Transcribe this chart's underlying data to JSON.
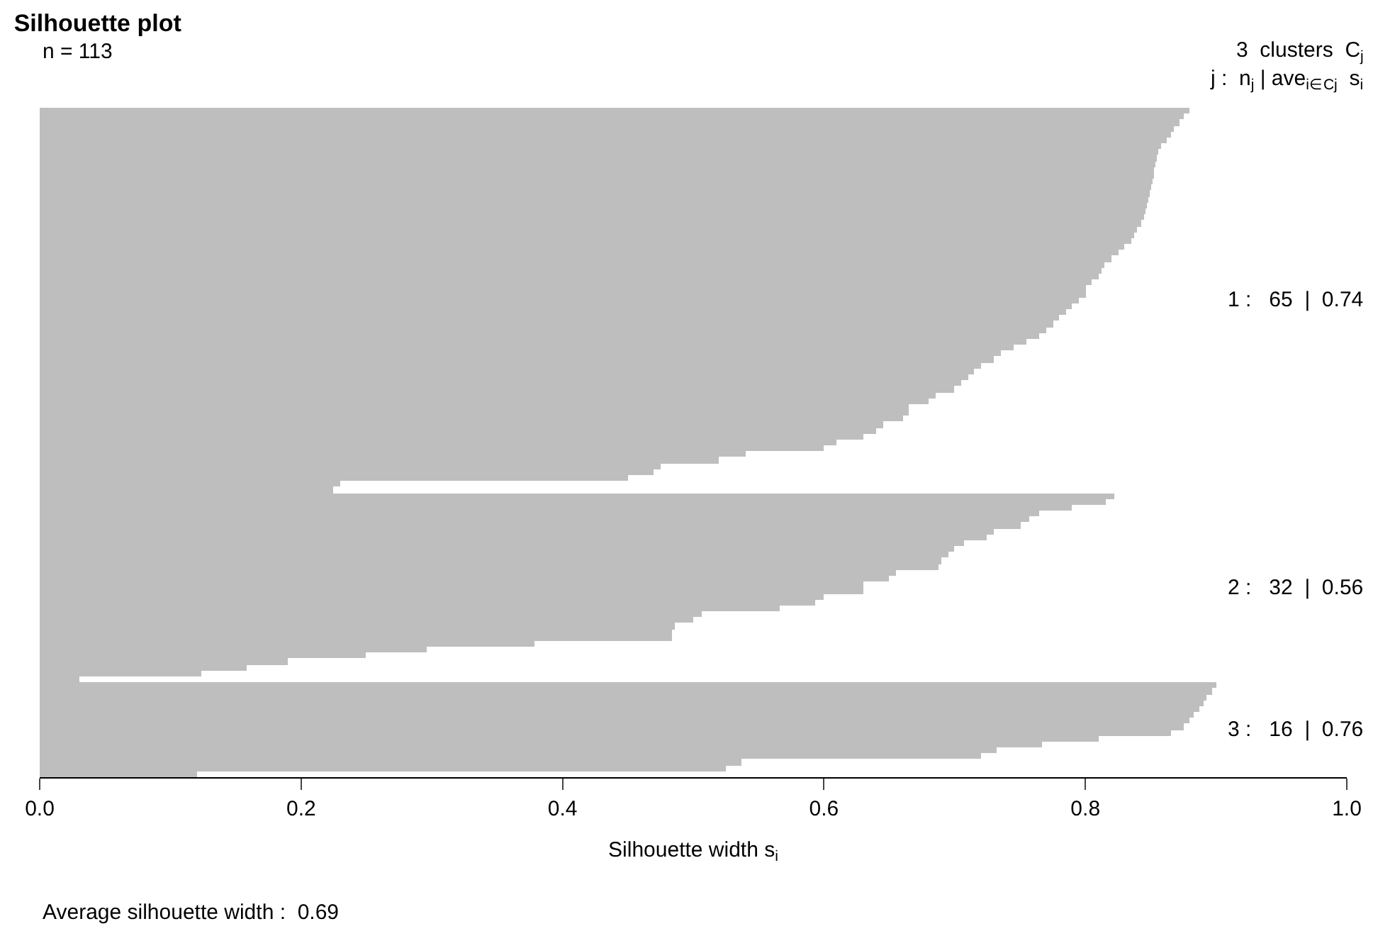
{
  "chart_data": {
    "type": "bar",
    "orientation": "horizontal",
    "stacked": true,
    "title": "Silhouette plot",
    "xlabel": "Silhouette width s$_{i}$",
    "categories": [
      null,
      null,
      null,
      null,
      null,
      null,
      null,
      null,
      null,
      null,
      null,
      null,
      null,
      null,
      null,
      null,
      null,
      null,
      null,
      null,
      null,
      null,
      null,
      null,
      null,
      null,
      null,
      null,
      null,
      null,
      null,
      null,
      null,
      null,
      null,
      null,
      null,
      null,
      null,
      null,
      null,
      null,
      null,
      null,
      null,
      null,
      null,
      null,
      null,
      null,
      null,
      null,
      null,
      null,
      null,
      null,
      null,
      null,
      null,
      null,
      null,
      null,
      null,
      null,
      null,
      null,
      null,
      null,
      null,
      null,
      null,
      null,
      null,
      null,
      null,
      null,
      null,
      null,
      null,
      null,
      null,
      null,
      null,
      null,
      null,
      null,
      null,
      null,
      null,
      null,
      null,
      null,
      null,
      null,
      null,
      null,
      null,
      null,
      null,
      null,
      null,
      null,
      null,
      null,
      null,
      null,
      null,
      null,
      null,
      null,
      null,
      null,
      null
    ],
    "series": [
      {
        "color": "#bebebe",
        "values": [
          0.88,
          0.875,
          0.872,
          0.868,
          0.865,
          0.862,
          0.858,
          0.856,
          0.855,
          0.854,
          0.853,
          0.852,
          0.851,
          0.85,
          0.849,
          0.848,
          0.847,
          0.846,
          0.845,
          0.843,
          0.84,
          0.837,
          0.835,
          0.83,
          0.825,
          0.82,
          0.815,
          0.812,
          0.81,
          0.805,
          0.8,
          0.8,
          0.795,
          0.79,
          0.785,
          0.78,
          0.775,
          0.77,
          0.765,
          0.755,
          0.745,
          0.735,
          0.73,
          0.72,
          0.715,
          0.71,
          0.705,
          0.7,
          0.685,
          0.68,
          0.665,
          0.665,
          0.66,
          0.645,
          0.64,
          0.63,
          0.61,
          0.6,
          0.54,
          0.52,
          0.475,
          0.47,
          0.45,
          0.23,
          0.225,
          null,
          null,
          null,
          null,
          null,
          null,
          null,
          null,
          null,
          null,
          null,
          null,
          null,
          null,
          null,
          null,
          null,
          null,
          null,
          null,
          null,
          null,
          null,
          null,
          null,
          null,
          null,
          null,
          null,
          null,
          null,
          null,
          null,
          null,
          null,
          null,
          null,
          null,
          null,
          null,
          null,
          null,
          null,
          null,
          null,
          null,
          null,
          null
        ]
      },
      {
        "color": "#bebebe",
        "values": [
          null,
          null,
          null,
          null,
          null,
          null,
          null,
          null,
          null,
          null,
          null,
          null,
          null,
          null,
          null,
          null,
          null,
          null,
          null,
          null,
          null,
          null,
          null,
          null,
          null,
          null,
          null,
          null,
          null,
          null,
          null,
          null,
          null,
          null,
          null,
          null,
          null,
          null,
          null,
          null,
          null,
          null,
          null,
          null,
          null,
          null,
          null,
          null,
          null,
          null,
          null,
          null,
          null,
          null,
          null,
          null,
          null,
          null,
          null,
          null,
          null,
          null,
          null,
          null,
          null,
          0.822,
          0.816,
          0.79,
          0.765,
          0.757,
          0.75,
          0.73,
          0.725,
          0.707,
          0.7,
          0.695,
          0.69,
          0.688,
          0.655,
          0.65,
          0.63,
          0.63,
          0.6,
          0.593,
          0.566,
          0.507,
          0.5,
          0.486,
          0.484,
          0.484,
          0.378,
          0.296,
          0.249,
          0.19,
          0.158,
          0.124,
          0.03,
          null,
          null,
          null,
          null,
          null,
          null,
          null,
          null,
          null,
          null,
          null,
          null,
          null,
          null,
          null,
          null
        ]
      },
      {
        "color": "#bebebe",
        "values": [
          null,
          null,
          null,
          null,
          null,
          null,
          null,
          null,
          null,
          null,
          null,
          null,
          null,
          null,
          null,
          null,
          null,
          null,
          null,
          null,
          null,
          null,
          null,
          null,
          null,
          null,
          null,
          null,
          null,
          null,
          null,
          null,
          null,
          null,
          null,
          null,
          null,
          null,
          null,
          null,
          null,
          null,
          null,
          null,
          null,
          null,
          null,
          null,
          null,
          null,
          null,
          null,
          null,
          null,
          null,
          null,
          null,
          null,
          null,
          null,
          null,
          null,
          null,
          null,
          null,
          null,
          null,
          null,
          null,
          null,
          null,
          null,
          null,
          null,
          null,
          null,
          null,
          null,
          null,
          null,
          null,
          null,
          null,
          null,
          null,
          null,
          null,
          null,
          null,
          null,
          null,
          null,
          null,
          null,
          null,
          null,
          null,
          0.9,
          0.897,
          0.893,
          0.89,
          0.887,
          0.883,
          0.88,
          0.875,
          0.866,
          0.81,
          0.767,
          0.732,
          0.72,
          0.537,
          0.525,
          0.12
        ]
      }
    ],
    "xlim": [
      0,
      1
    ],
    "xticks": [
      {
        "value": 0,
        "label": "0.0"
      },
      {
        "value": 0.2,
        "label": "0.2"
      },
      {
        "value": 0.4,
        "label": "0.4"
      },
      {
        "value": 0.6,
        "label": "0.6"
      },
      {
        "value": 0.8,
        "label": "0.8"
      },
      {
        "value": 1,
        "label": "1.0"
      }
    ],
    "tick_labels": "x",
    "annotations": [
      "n = 113",
      "3  clusters  C$_{j}$",
      "j :  n$_{j}$ | ave$_{i∈Cj}$  s$_{i}$",
      "1 :   65  |  0.74",
      "2 :   32  |  0.56",
      "3 :   16  |  0.76",
      "Average silhouette width :  0.69"
    ]
  }
}
